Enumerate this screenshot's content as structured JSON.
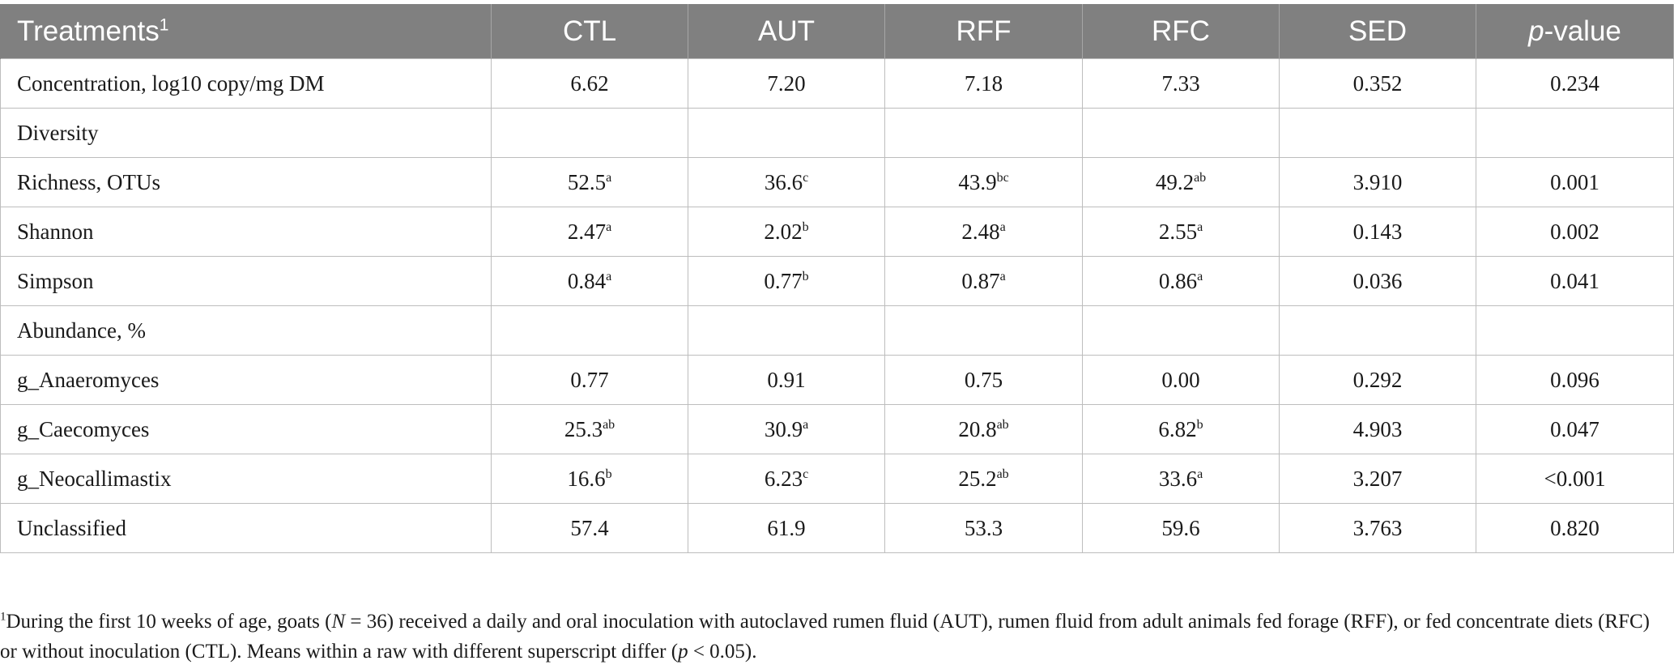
{
  "table": {
    "headers": [
      {
        "text": "Treatments",
        "sup": "1"
      },
      {
        "text": "CTL",
        "sup": ""
      },
      {
        "text": "AUT",
        "sup": ""
      },
      {
        "text": "RFF",
        "sup": ""
      },
      {
        "text": "RFC",
        "sup": ""
      },
      {
        "text": "SED",
        "sup": ""
      },
      {
        "text": "p",
        "suffix": "-value"
      }
    ],
    "rows": [
      [
        {
          "v": "Concentration, log10 copy/mg DM",
          "s": ""
        },
        {
          "v": "6.62",
          "s": ""
        },
        {
          "v": "7.20",
          "s": ""
        },
        {
          "v": "7.18",
          "s": ""
        },
        {
          "v": "7.33",
          "s": ""
        },
        {
          "v": "0.352",
          "s": ""
        },
        {
          "v": "0.234",
          "s": ""
        }
      ],
      [
        {
          "v": "Diversity",
          "s": ""
        },
        {
          "v": "",
          "s": ""
        },
        {
          "v": "",
          "s": ""
        },
        {
          "v": "",
          "s": ""
        },
        {
          "v": "",
          "s": ""
        },
        {
          "v": "",
          "s": ""
        },
        {
          "v": "",
          "s": ""
        }
      ],
      [
        {
          "v": "Richness, OTUs",
          "s": ""
        },
        {
          "v": "52.5",
          "s": "a"
        },
        {
          "v": "36.6",
          "s": "c"
        },
        {
          "v": "43.9",
          "s": "bc"
        },
        {
          "v": "49.2",
          "s": "ab"
        },
        {
          "v": "3.910",
          "s": ""
        },
        {
          "v": "0.001",
          "s": ""
        }
      ],
      [
        {
          "v": "Shannon",
          "s": ""
        },
        {
          "v": "2.47",
          "s": "a"
        },
        {
          "v": "2.02",
          "s": "b"
        },
        {
          "v": "2.48",
          "s": "a"
        },
        {
          "v": "2.55",
          "s": "a"
        },
        {
          "v": "0.143",
          "s": ""
        },
        {
          "v": "0.002",
          "s": ""
        }
      ],
      [
        {
          "v": "Simpson",
          "s": ""
        },
        {
          "v": "0.84",
          "s": "a"
        },
        {
          "v": "0.77",
          "s": "b"
        },
        {
          "v": "0.87",
          "s": "a"
        },
        {
          "v": "0.86",
          "s": "a"
        },
        {
          "v": "0.036",
          "s": ""
        },
        {
          "v": "0.041",
          "s": ""
        }
      ],
      [
        {
          "v": "Abundance, %",
          "s": ""
        },
        {
          "v": "",
          "s": ""
        },
        {
          "v": "",
          "s": ""
        },
        {
          "v": "",
          "s": ""
        },
        {
          "v": "",
          "s": ""
        },
        {
          "v": "",
          "s": ""
        },
        {
          "v": "",
          "s": ""
        }
      ],
      [
        {
          "v": "g_Anaeromyces",
          "s": ""
        },
        {
          "v": "0.77",
          "s": ""
        },
        {
          "v": "0.91",
          "s": ""
        },
        {
          "v": "0.75",
          "s": ""
        },
        {
          "v": "0.00",
          "s": ""
        },
        {
          "v": "0.292",
          "s": ""
        },
        {
          "v": "0.096",
          "s": ""
        }
      ],
      [
        {
          "v": "g_Caecomyces",
          "s": ""
        },
        {
          "v": "25.3",
          "s": "ab"
        },
        {
          "v": "30.9",
          "s": "a"
        },
        {
          "v": "20.8",
          "s": "ab"
        },
        {
          "v": "6.82",
          "s": "b"
        },
        {
          "v": "4.903",
          "s": ""
        },
        {
          "v": "0.047",
          "s": ""
        }
      ],
      [
        {
          "v": "g_Neocallimastix",
          "s": ""
        },
        {
          "v": "16.6",
          "s": "b"
        },
        {
          "v": "6.23",
          "s": "c"
        },
        {
          "v": "25.2",
          "s": "ab"
        },
        {
          "v": "33.6",
          "s": "a"
        },
        {
          "v": "3.207",
          "s": ""
        },
        {
          "v": "<0.001",
          "s": ""
        }
      ],
      [
        {
          "v": "Unclassified",
          "s": ""
        },
        {
          "v": "57.4",
          "s": ""
        },
        {
          "v": "61.9",
          "s": ""
        },
        {
          "v": "53.3",
          "s": ""
        },
        {
          "v": "59.6",
          "s": ""
        },
        {
          "v": "3.763",
          "s": ""
        },
        {
          "v": "0.820",
          "s": ""
        }
      ]
    ]
  },
  "footnote": {
    "marker": "1",
    "part1": "During the first 10 weeks of age, goats (",
    "n_var": "N",
    "part2": " = 36) received a daily and oral inoculation with autoclaved rumen fluid (AUT), rumen fluid from adult animals fed forage (RFF), or fed concentrate diets (RFC) or without inoculation (CTL). Means within a raw with different superscript differ (",
    "p_var": "p",
    "part3": " < 0.05)."
  },
  "colors": {
    "header_bg": "#808080",
    "header_text": "#ffffff",
    "border": "#bdbdbd"
  }
}
